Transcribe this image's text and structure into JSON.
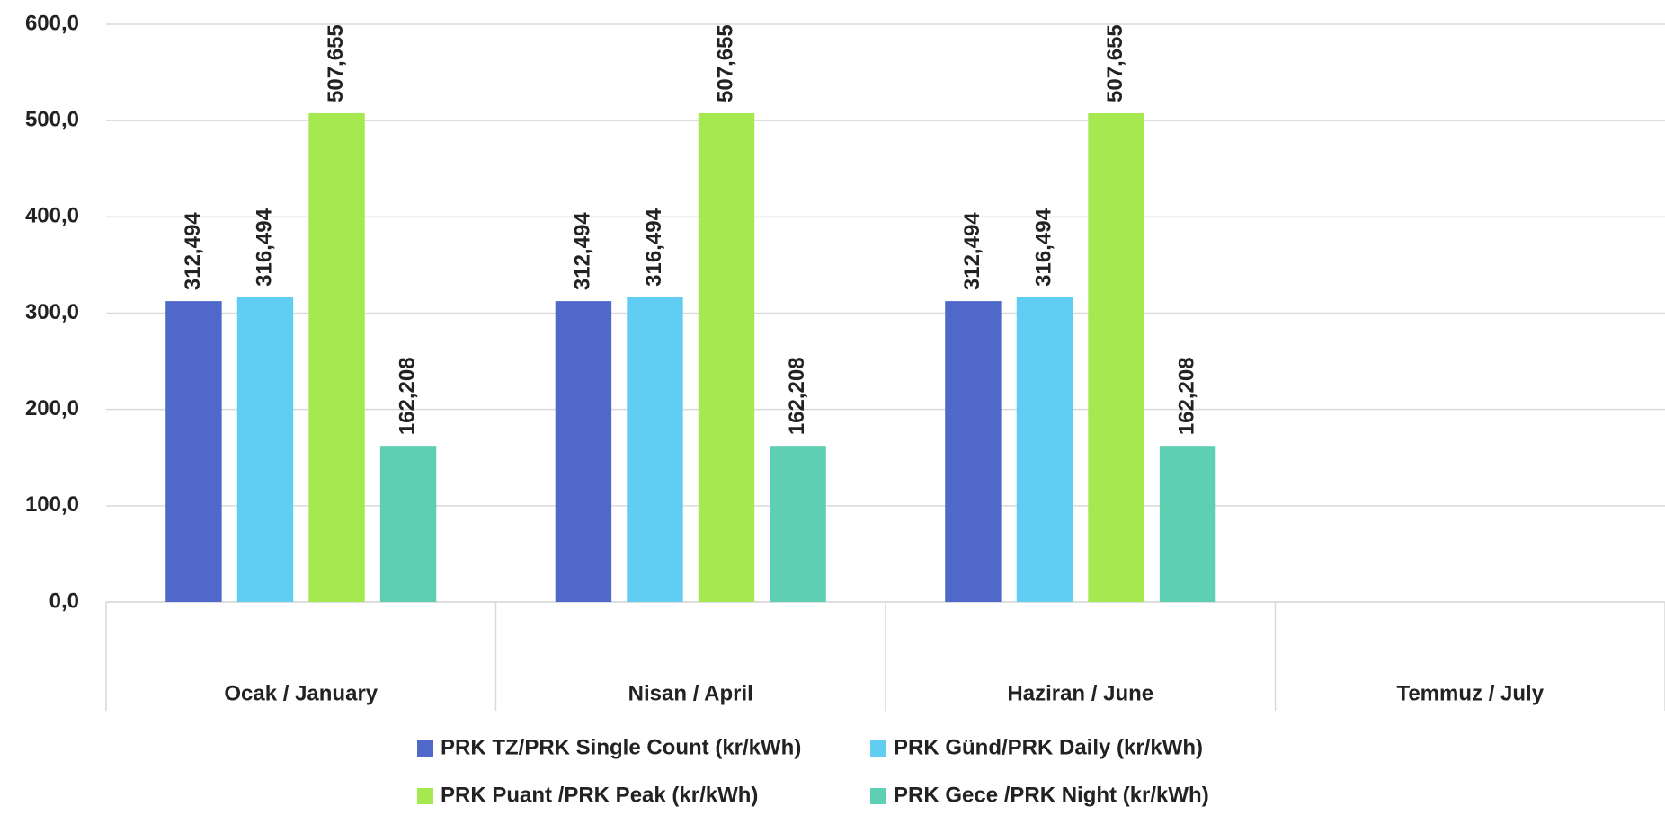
{
  "chart_data": {
    "type": "bar",
    "categories": [
      "Ocak / January",
      "Nisan / April",
      "Haziran / June",
      "Temmuz / July"
    ],
    "series": [
      {
        "name": "PRK TZ/PRK Single Count (kr/kWh)",
        "color": "#5068c9",
        "values": [
          312.494,
          312.494,
          312.494,
          null
        ],
        "value_labels": [
          "312,494",
          "312,494",
          "312,494",
          null
        ]
      },
      {
        "name": "PRK Günd/PRK Daily (kr/kWh)",
        "color": "#62cdf2",
        "values": [
          316.494,
          316.494,
          316.494,
          null
        ],
        "value_labels": [
          "316,494",
          "316,494",
          "316,494",
          null
        ]
      },
      {
        "name": "PRK Puant /PRK Peak (kr/kWh)",
        "color": "#a5e850",
        "values": [
          507.655,
          507.655,
          507.655,
          null
        ],
        "value_labels": [
          "507,655",
          "507,655",
          "507,655",
          null
        ]
      },
      {
        "name": "PRK Gece /PRK Night (kr/kWh)",
        "color": "#5ecfb2",
        "values": [
          162.208,
          162.208,
          162.208,
          null
        ],
        "value_labels": [
          "162,208",
          "162,208",
          "162,208",
          null
        ]
      }
    ],
    "ylim": [
      0,
      600
    ],
    "yticks": [
      {
        "value": 0,
        "label": "0,0"
      },
      {
        "value": 100,
        "label": "100,0"
      },
      {
        "value": 200,
        "label": "200,0"
      },
      {
        "value": 300,
        "label": "300,0"
      },
      {
        "value": 400,
        "label": "400,0"
      },
      {
        "value": 500,
        "label": "500,0"
      },
      {
        "value": 600,
        "label": "600,0"
      }
    ],
    "grid": true,
    "legend": "bottom"
  }
}
